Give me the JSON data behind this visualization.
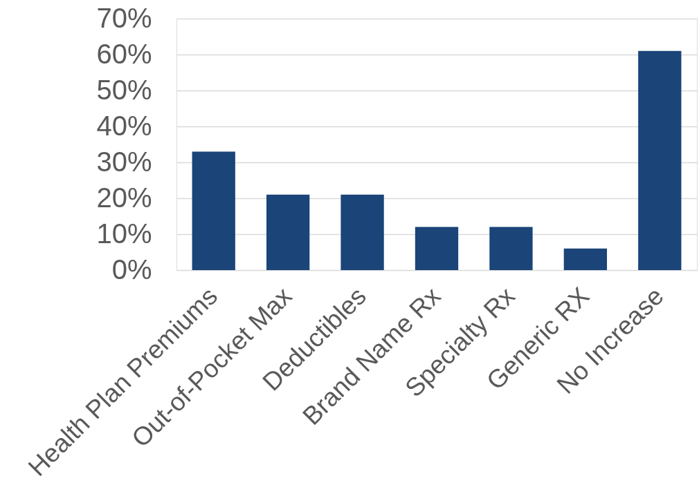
{
  "chart_data": {
    "type": "bar",
    "categories": [
      "Health Plan Premiums",
      "Out-of-Pocket Max",
      "Deductibles",
      "Brand Name Rx",
      "Specialty Rx",
      "Generic RX",
      "No Increase"
    ],
    "values": [
      33,
      21,
      21,
      12,
      12,
      6,
      61
    ],
    "color": "#1b4478",
    "ylim": [
      0,
      70
    ],
    "yticks": [
      {
        "value": 0,
        "label": "0%"
      },
      {
        "value": 10,
        "label": "10%"
      },
      {
        "value": 20,
        "label": "20%"
      },
      {
        "value": 30,
        "label": "30%"
      },
      {
        "value": 40,
        "label": "40%"
      },
      {
        "value": 50,
        "label": "50%"
      },
      {
        "value": 60,
        "label": "60%"
      },
      {
        "value": 70,
        "label": "70%"
      }
    ],
    "grid": "y"
  }
}
